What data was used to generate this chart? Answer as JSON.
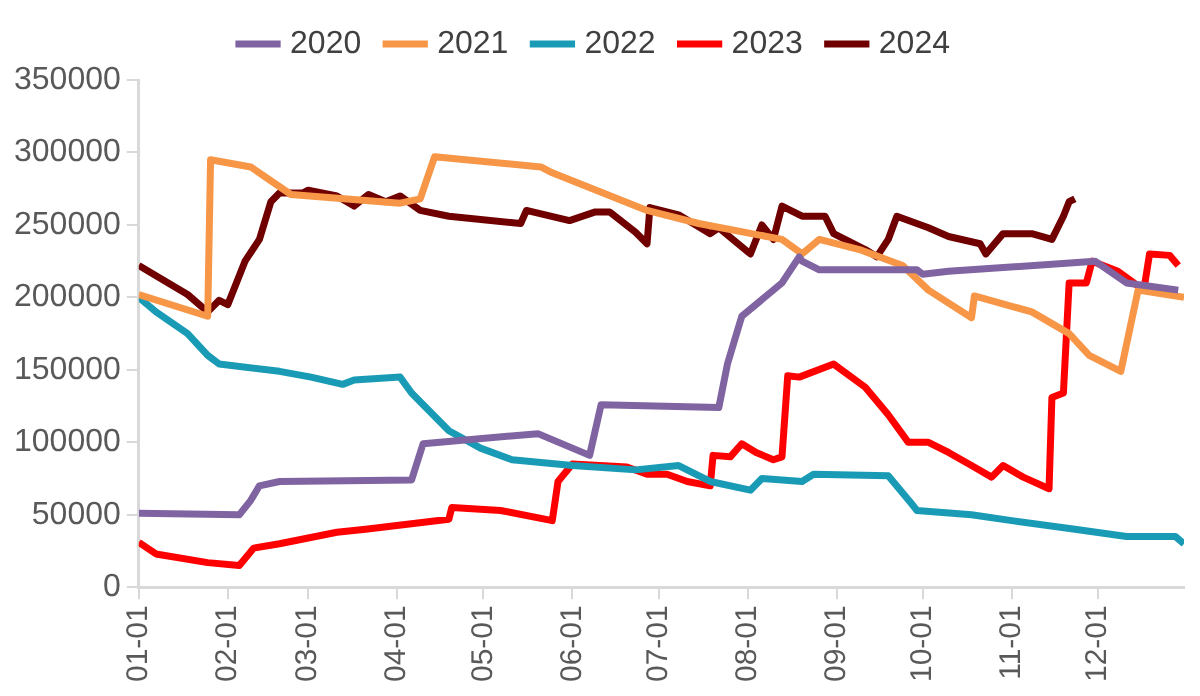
{
  "chart_data": {
    "type": "line",
    "legend": "top",
    "grid": false,
    "marker": "none",
    "line_style": "solid",
    "xlim": [
      "--01-01",
      "--12-31"
    ],
    "xticks": [
      {
        "value": "--01-01",
        "label": "01-01"
      },
      {
        "value": "--02-01",
        "label": "02-01"
      },
      {
        "value": "--03-01",
        "label": "03-01"
      },
      {
        "value": "--04-01",
        "label": "04-01"
      },
      {
        "value": "--05-01",
        "label": "05-01"
      },
      {
        "value": "--06-01",
        "label": "06-01"
      },
      {
        "value": "--07-01",
        "label": "07-01"
      },
      {
        "value": "--08-01",
        "label": "08-01"
      },
      {
        "value": "--09-01",
        "label": "09-01"
      },
      {
        "value": "--10-01",
        "label": "10-01"
      },
      {
        "value": "--11-01",
        "label": "11-01"
      },
      {
        "value": "--12-01",
        "label": "12-01"
      }
    ],
    "ylim": [
      0,
      350000
    ],
    "yticks": [
      0,
      50000,
      100000,
      150000,
      200000,
      250000,
      300000,
      350000
    ],
    "series": [
      {
        "name": "2020",
        "color": "#8064a2",
        "x": [
          "--01-01",
          "--02-05",
          "--02-09",
          "--02-12",
          "--02-19",
          "--04-06",
          "--04-10",
          "--05-20",
          "--06-07",
          "--06-11",
          "--07-22",
          "--07-25",
          "--07-30",
          "--08-13",
          "--08-19",
          "--08-20",
          "--08-26",
          "--09-29",
          "--10-01",
          "--10-10",
          "--11-30",
          "--12-11",
          "--12-29"
        ],
        "values": [
          51000,
          50000,
          60000,
          70000,
          73000,
          74000,
          99000,
          106000,
          91000,
          126000,
          124000,
          154000,
          187000,
          210000,
          228000,
          225000,
          219000,
          219000,
          216000,
          218000,
          225000,
          210000,
          205000
        ]
      },
      {
        "name": "2021",
        "color": "#f79646",
        "x": [
          "--01-01",
          "--01-25",
          "--01-26",
          "--02-09",
          "--02-23",
          "--04-02",
          "--04-09",
          "--04-14",
          "--05-21",
          "--05-25",
          "--06-27",
          "--07-15",
          "--08-13",
          "--08-20",
          "--08-26",
          "--09-09",
          "--09-24",
          "--10-03",
          "--10-18",
          "--10-19",
          "--11-08",
          "--11-21",
          "--11-28",
          "--12-09",
          "--12-15",
          "--12-31"
        ],
        "values": [
          202000,
          187000,
          295000,
          290000,
          271000,
          265000,
          268000,
          297000,
          290000,
          286000,
          260000,
          251000,
          240000,
          230000,
          240000,
          233000,
          222000,
          205000,
          186000,
          201000,
          190000,
          175000,
          160000,
          149000,
          205000,
          200000
        ]
      },
      {
        "name": "2022",
        "color": "#1a9bb5",
        "x": [
          "--01-01",
          "--01-07",
          "--01-18",
          "--01-25",
          "--01-29",
          "--02-19",
          "--03-02",
          "--03-13",
          "--03-17",
          "--04-02",
          "--04-06",
          "--04-19",
          "--04-30",
          "--05-11",
          "--06-01",
          "--06-23",
          "--07-08",
          "--07-19",
          "--08-02",
          "--08-06",
          "--08-20",
          "--08-24",
          "--09-19",
          "--09-27",
          "--09-29",
          "--10-18",
          "--11-01",
          "--11-23",
          "--12-11",
          "--12-28",
          "--12-31"
        ],
        "values": [
          200000,
          190000,
          175000,
          160000,
          154000,
          149000,
          145000,
          140000,
          143000,
          145000,
          134000,
          108000,
          96000,
          88000,
          84000,
          81000,
          84000,
          73000,
          67000,
          75000,
          73000,
          78000,
          77000,
          58000,
          53000,
          50000,
          46000,
          40000,
          35000,
          35000,
          30000
        ]
      },
      {
        "name": "2023",
        "color": "#ff0000",
        "x": [
          "--01-01",
          "--01-07",
          "--01-25",
          "--02-05",
          "--02-10",
          "--02-19",
          "--03-11",
          "--03-21",
          "--04-19",
          "--04-20",
          "--05-07",
          "--05-25",
          "--05-27",
          "--06-01",
          "--06-20",
          "--06-27",
          "--07-04",
          "--07-11",
          "--07-19",
          "--07-20",
          "--07-26",
          "--07-30",
          "--08-04",
          "--08-10",
          "--08-13",
          "--08-15",
          "--08-19",
          "--08-31",
          "--09-11",
          "--09-19",
          "--09-26",
          "--10-03",
          "--10-10",
          "--10-18",
          "--10-25",
          "--10-29",
          "--11-05",
          "--11-14",
          "--11-15",
          "--11-19",
          "--11-21",
          "--11-27",
          "--11-29",
          "--12-08",
          "--12-17",
          "--12-19",
          "--12-26",
          "--12-29"
        ],
        "values": [
          31000,
          23000,
          17000,
          15000,
          27000,
          30000,
          38000,
          40000,
          47000,
          55000,
          53000,
          46000,
          73000,
          85000,
          83000,
          78000,
          78000,
          73000,
          70000,
          91000,
          90000,
          99000,
          93000,
          88000,
          90000,
          146000,
          145000,
          154000,
          138000,
          119000,
          100000,
          100000,
          93000,
          84000,
          76000,
          84000,
          76000,
          68000,
          131000,
          134000,
          210000,
          210000,
          225000,
          218000,
          205000,
          230000,
          229000,
          222000
        ]
      },
      {
        "name": "2024",
        "color": "#700000",
        "x": [
          "--01-01",
          "--01-07",
          "--01-18",
          "--01-25",
          "--01-29",
          "--02-01",
          "--02-07",
          "--02-12",
          "--02-16",
          "--02-19",
          "--02-27",
          "--03-01",
          "--03-11",
          "--03-17",
          "--03-22",
          "--03-28",
          "--04-02",
          "--04-09",
          "--04-19",
          "--05-14",
          "--05-16",
          "--05-31",
          "--06-09",
          "--06-14",
          "--06-23",
          "--06-27",
          "--06-28",
          "--07-08",
          "--07-19",
          "--07-22",
          "--08-02",
          "--08-06",
          "--08-10",
          "--08-13",
          "--08-20",
          "--08-28",
          "--08-31",
          "--09-11",
          "--09-15",
          "--09-19",
          "--09-22",
          "--10-03",
          "--10-10",
          "--10-21",
          "--10-23",
          "--10-29",
          "--11-08",
          "--11-15",
          "--11-19",
          "--11-21",
          "--11-23"
        ],
        "values": [
          222000,
          215000,
          202000,
          190000,
          198000,
          195000,
          225000,
          240000,
          266000,
          272000,
          272000,
          274000,
          270000,
          263000,
          271000,
          266000,
          270000,
          260000,
          256000,
          251000,
          260000,
          253000,
          259000,
          259000,
          245000,
          237000,
          262000,
          257000,
          244000,
          248000,
          230000,
          250000,
          240000,
          263000,
          256000,
          256000,
          244000,
          233000,
          228000,
          240000,
          256000,
          248000,
          242000,
          237000,
          230000,
          244000,
          244000,
          240000,
          256000,
          266000,
          268000
        ]
      }
    ]
  }
}
